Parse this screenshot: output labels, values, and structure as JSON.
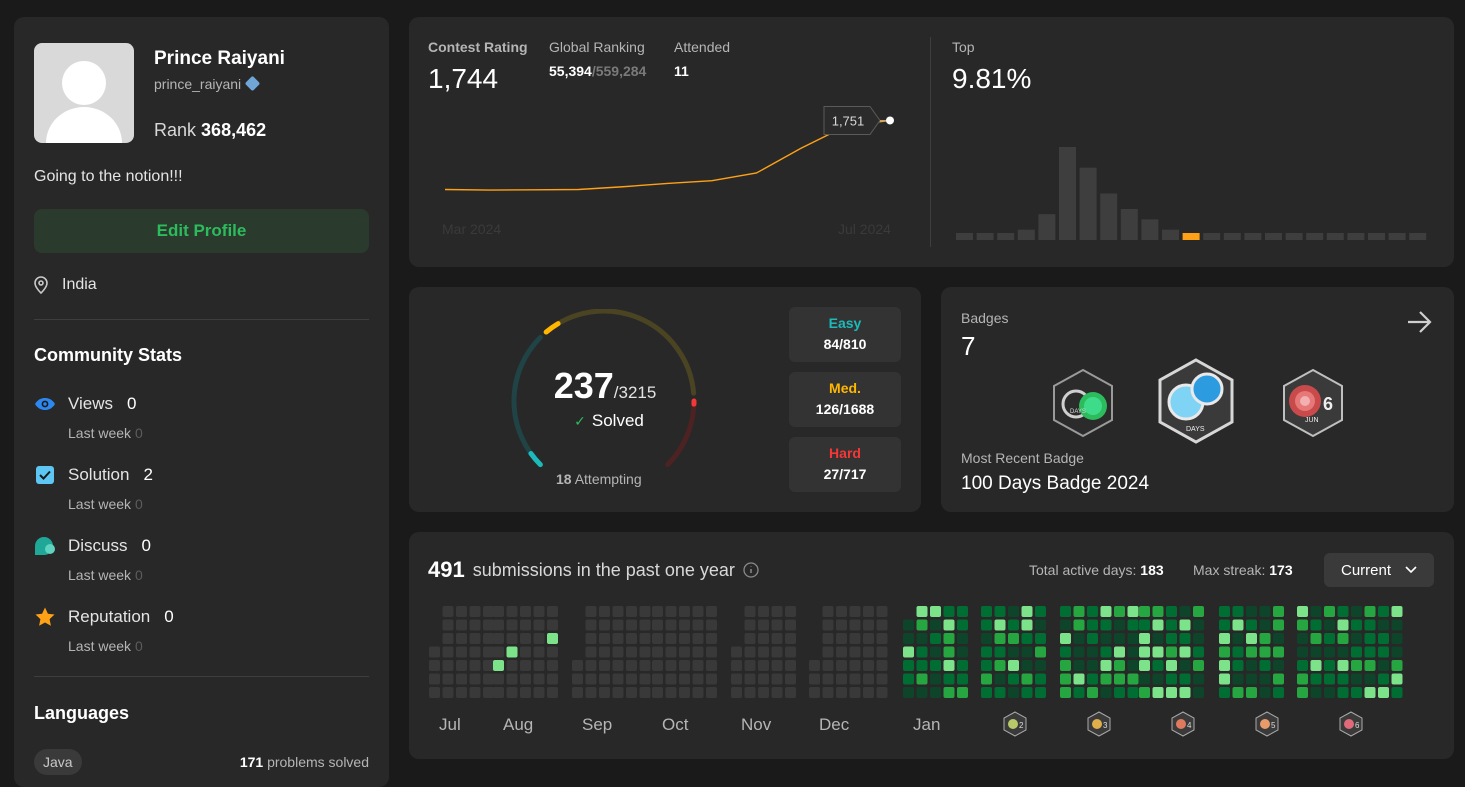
{
  "profile": {
    "name": "Prince Raiyani",
    "handle": "prince_raiyani",
    "rank_label": "Rank",
    "rank_value": "368,462",
    "bio": "Going to the notion!!!",
    "edit_label": "Edit Profile",
    "location": "India"
  },
  "community": {
    "title": "Community Stats",
    "stats": [
      {
        "label": "Views",
        "value": "0",
        "sub": "Last week",
        "sub_value": "0",
        "icon": "eye-icon"
      },
      {
        "label": "Solution",
        "value": "2",
        "sub": "Last week",
        "sub_value": "0",
        "icon": "checkbox-icon"
      },
      {
        "label": "Discuss",
        "value": "0",
        "sub": "Last week",
        "sub_value": "0",
        "icon": "discuss-icon"
      },
      {
        "label": "Reputation",
        "value": "0",
        "sub": "Last week",
        "sub_value": "0",
        "icon": "star-icon"
      }
    ]
  },
  "languages": {
    "title": "Languages",
    "items": [
      {
        "name": "Java",
        "count": "171",
        "suffix": "problems solved"
      }
    ]
  },
  "contest": {
    "rating_label": "Contest Rating",
    "rating": "1,744",
    "global_label": "Global Ranking",
    "global_rank": "55,394",
    "global_total": "/559,284",
    "attended_label": "Attended",
    "attended": "11",
    "top_label": "Top",
    "top_value": "9.81%",
    "tooltip": "1,751",
    "x_start": "Mar 2024",
    "x_end": "Jul 2024"
  },
  "chart_data": [
    {
      "type": "line",
      "title": "Contest Rating",
      "x": [
        "Mar 2024",
        "",
        "",
        "",
        "",
        "",
        "",
        "",
        "",
        "",
        "Jul 2024"
      ],
      "series": [
        {
          "name": "rating",
          "values": [
            1500,
            1498,
            1499,
            1500,
            1510,
            1522,
            1532,
            1560,
            1650,
            1730,
            1751
          ]
        }
      ],
      "ylim": [
        1400,
        1800
      ]
    },
    {
      "type": "bar",
      "title": "Top",
      "values": [
        1,
        1,
        1,
        2,
        5,
        18,
        14,
        9,
        6,
        4,
        2,
        1,
        1,
        1,
        1,
        1,
        1,
        1,
        1,
        1,
        1,
        1,
        1
      ],
      "highlight_index": 11
    }
  ],
  "solved": {
    "count": "237",
    "total": "/3215",
    "solved_label": "Solved",
    "attempting_count": "18",
    "attempting_label": "Attempting",
    "easy": {
      "name": "Easy",
      "value": "84/810",
      "solved": 84,
      "total": 810,
      "color": "#1cbaba"
    },
    "medium": {
      "name": "Med.",
      "value": "126/1688",
      "solved": 126,
      "total": 1688,
      "color": "#ffb700"
    },
    "hard": {
      "name": "Hard",
      "value": "27/717",
      "solved": 27,
      "total": 717,
      "color": "#f63737"
    }
  },
  "badges": {
    "title": "Badges",
    "count": "7",
    "recent_label": "Most Recent Badge",
    "recent_name": "100 Days Badge 2024",
    "items": [
      {
        "icon": "50-days-badge-icon",
        "text": "DAYS"
      },
      {
        "icon": "100-days-badge-icon",
        "text": "DAYS"
      },
      {
        "icon": "june-badge-icon",
        "text": "JUN"
      }
    ]
  },
  "heatmap": {
    "count": "491",
    "label": "submissions in the past one year",
    "active_label": "Total active days:",
    "active_value": "183",
    "streak_label": "Max streak:",
    "streak_value": "173",
    "select_value": "Current",
    "months": [
      "Jul",
      "Aug",
      "Sep",
      "Oct",
      "Nov",
      "Dec",
      "Jan",
      "",
      "",
      "",
      "",
      ""
    ],
    "month_badges": [
      "2",
      "3",
      "4",
      "5",
      "6"
    ]
  }
}
